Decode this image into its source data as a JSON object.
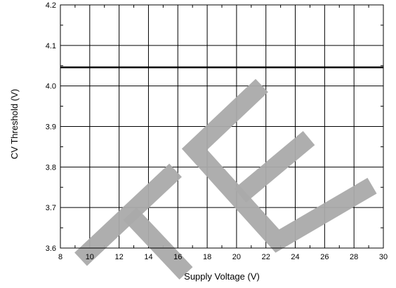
{
  "chart_data": {
    "type": "line",
    "title": "",
    "xlabel": "Supply Voltage (V)",
    "ylabel": "CV Threshold (V)",
    "xlim": [
      8,
      30
    ],
    "ylim": [
      3.6,
      4.2
    ],
    "x_ticks": [
      "8",
      "10",
      "12",
      "14",
      "16",
      "18",
      "20",
      "22",
      "24",
      "26",
      "28",
      "30"
    ],
    "y_ticks": [
      "3.6",
      "3.7",
      "3.8",
      "3.9",
      "4.0",
      "4.1",
      "4.2"
    ],
    "grid": true,
    "series": [
      {
        "x": [
          8,
          30
        ],
        "y": [
          4.046,
          4.046
        ],
        "color": "#000000"
      }
    ],
    "watermark": {
      "text": "TE",
      "color": "#aaaaaa"
    }
  }
}
